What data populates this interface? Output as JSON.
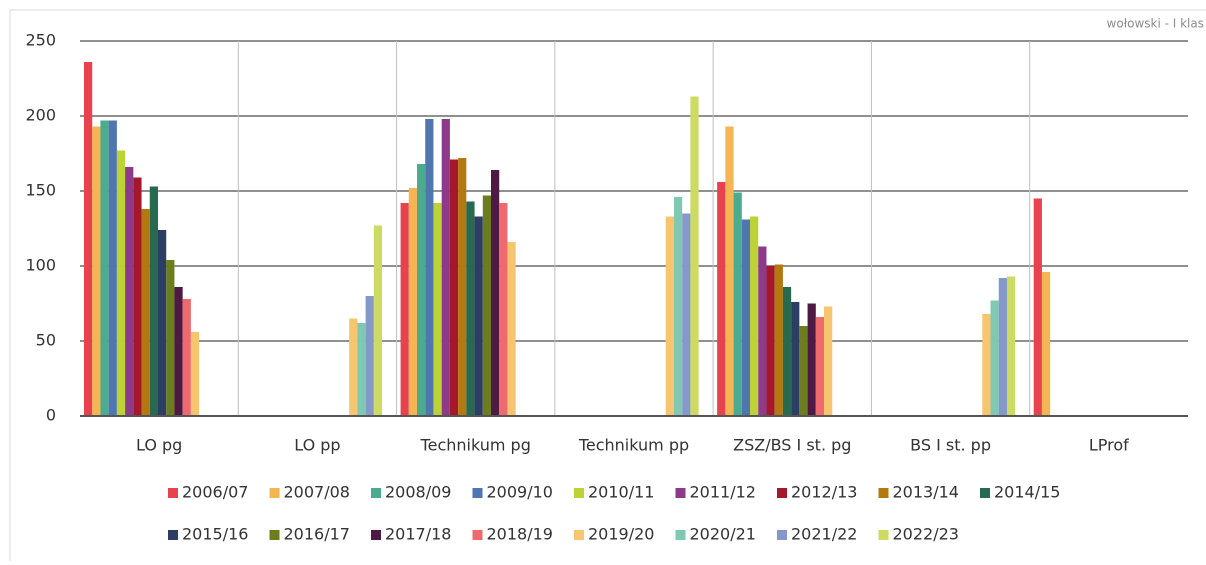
{
  "chart_data": {
    "type": "bar",
    "watermark": "wołowski - I klas",
    "categories": [
      "LO pg",
      "LO pp",
      "Technikum pg",
      "Technikum pp",
      "ZSZ/BS I st. pg",
      "BS I st. pp",
      "LProf"
    ],
    "series": [
      {
        "name": "2006/07",
        "color": "#e8424e",
        "values": [
          236,
          null,
          142,
          null,
          156,
          null,
          145
        ]
      },
      {
        "name": "2007/08",
        "color": "#f5b552",
        "values": [
          193,
          null,
          152,
          null,
          193,
          null,
          96
        ]
      },
      {
        "name": "2008/09",
        "color": "#4bab8f",
        "values": [
          197,
          null,
          168,
          null,
          149,
          null,
          null
        ]
      },
      {
        "name": "2009/10",
        "color": "#5076b0",
        "values": [
          197,
          null,
          198,
          null,
          131,
          null,
          null
        ]
      },
      {
        "name": "2010/11",
        "color": "#bdd234",
        "values": [
          177,
          null,
          142,
          null,
          133,
          null,
          null
        ]
      },
      {
        "name": "2011/12",
        "color": "#8e3a8a",
        "values": [
          166,
          null,
          198,
          null,
          113,
          null,
          null
        ]
      },
      {
        "name": "2012/13",
        "color": "#a5172a",
        "values": [
          159,
          null,
          171,
          null,
          100,
          null,
          null
        ]
      },
      {
        "name": "2013/14",
        "color": "#b3780f",
        "values": [
          138,
          null,
          172,
          null,
          101,
          null,
          null
        ]
      },
      {
        "name": "2014/15",
        "color": "#276a50",
        "values": [
          153,
          null,
          143,
          null,
          86,
          null,
          null
        ]
      },
      {
        "name": "2015/16",
        "color": "#2c3e64",
        "values": [
          124,
          null,
          133,
          null,
          76,
          null,
          null
        ]
      },
      {
        "name": "2016/17",
        "color": "#6b7d1f",
        "values": [
          104,
          null,
          147,
          null,
          60,
          null,
          null
        ]
      },
      {
        "name": "2017/18",
        "color": "#4e1a44",
        "values": [
          86,
          null,
          164,
          null,
          75,
          null,
          null
        ]
      },
      {
        "name": "2018/19",
        "color": "#ee6a6e",
        "values": [
          78,
          null,
          142,
          null,
          66,
          null,
          null
        ]
      },
      {
        "name": "2019/20",
        "color": "#f7c46f",
        "values": [
          56,
          65,
          116,
          133,
          73,
          68,
          null
        ]
      },
      {
        "name": "2020/21",
        "color": "#7fc8b1",
        "values": [
          null,
          62,
          null,
          146,
          null,
          77,
          null
        ]
      },
      {
        "name": "2021/22",
        "color": "#8499c9",
        "values": [
          null,
          80,
          null,
          135,
          null,
          92,
          null
        ]
      },
      {
        "name": "2022/23",
        "color": "#cddb65",
        "values": [
          null,
          127,
          null,
          213,
          null,
          93,
          null
        ]
      }
    ],
    "ylim": [
      0,
      250
    ],
    "yticks": [
      0,
      50,
      100,
      150,
      200,
      250
    ],
    "grid": true
  }
}
